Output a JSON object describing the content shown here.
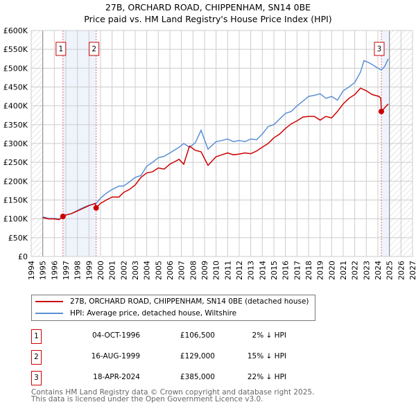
{
  "chart_data": {
    "type": "line",
    "title": "27B, ORCHARD ROAD, CHIPPENHAM, SN14 0BE",
    "subtitle": "Price paid vs. HM Land Registry's House Price Index (HPI)",
    "xlim": [
      1994,
      2027
    ],
    "ylim": [
      0,
      600000
    ],
    "x_ticks": [
      "1994",
      "1995",
      "1996",
      "1997",
      "1998",
      "1999",
      "2000",
      "2001",
      "2002",
      "2003",
      "2004",
      "2005",
      "2006",
      "2007",
      "2008",
      "2009",
      "2010",
      "2011",
      "2012",
      "2013",
      "2014",
      "2015",
      "2016",
      "2017",
      "2018",
      "2019",
      "2020",
      "2021",
      "2022",
      "2023",
      "2024",
      "2025",
      "2026",
      "2027"
    ],
    "y_ticks": [
      {
        "v": 0,
        "label": "£0"
      },
      {
        "v": 50000,
        "label": "£50K"
      },
      {
        "v": 100000,
        "label": "£100K"
      },
      {
        "v": 150000,
        "label": "£150K"
      },
      {
        "v": 200000,
        "label": "£200K"
      },
      {
        "v": 250000,
        "label": "£250K"
      },
      {
        "v": 300000,
        "label": "£300K"
      },
      {
        "v": 350000,
        "label": "£350K"
      },
      {
        "v": 400000,
        "label": "£400K"
      },
      {
        "v": 450000,
        "label": "£450K"
      },
      {
        "v": 500000,
        "label": "£500K"
      },
      {
        "v": 550000,
        "label": "£550K"
      },
      {
        "v": 600000,
        "label": "£600K"
      }
    ],
    "grid": true,
    "series": [
      {
        "name": "27B, ORCHARD ROAD, CHIPPENHAM, SN14 0BE (detached house)",
        "color": "#cc0000",
        "x": [
          1995,
          1995.5,
          1996,
          1996.4,
          1996.75,
          1997,
          1997.5,
          1998,
          1998.5,
          1999,
          1999.55,
          1999.62,
          2000,
          2000.5,
          2001,
          2001.6,
          2002,
          2002.5,
          2003,
          2003.5,
          2004,
          2004.5,
          2005,
          2005.5,
          2006,
          2006.8,
          2007.2,
          2007.7,
          2008.2,
          2008.7,
          2009.3,
          2010,
          2010.5,
          2011,
          2011.5,
          2012,
          2012.5,
          2013,
          2013.5,
          2014,
          2014.5,
          2015,
          2015.5,
          2016,
          2016.5,
          2017,
          2017.5,
          2018,
          2018.5,
          2019,
          2019.5,
          2020,
          2020.5,
          2021,
          2021.5,
          2022,
          2022.5,
          2023,
          2023.5,
          2024.1,
          2024.25,
          2024.3,
          2024.9
        ],
        "y": [
          103000,
          100000,
          100000,
          98000,
          106500,
          110000,
          114000,
          121000,
          128000,
          135000,
          141000,
          129000,
          141000,
          150000,
          158000,
          158000,
          170000,
          178000,
          190000,
          210000,
          222000,
          225000,
          235000,
          232000,
          245000,
          258000,
          245000,
          293000,
          282000,
          278000,
          242000,
          265000,
          270000,
          275000,
          270000,
          272000,
          275000,
          273000,
          280000,
          290000,
          300000,
          315000,
          325000,
          340000,
          352000,
          360000,
          370000,
          372000,
          372000,
          362000,
          372000,
          368000,
          385000,
          405000,
          420000,
          430000,
          447000,
          440000,
          430000,
          425000,
          420000,
          385000,
          405000
        ]
      },
      {
        "name": "HPI: Average price, detached house, Wiltshire",
        "color": "#5b8fd4",
        "x": [
          1995,
          1995.5,
          1996,
          1996.5,
          1997,
          1997.5,
          1998,
          1998.5,
          1999,
          1999.6,
          2000,
          2000.5,
          2001,
          2001.6,
          2002,
          2002.5,
          2003,
          2003.5,
          2004,
          2004.5,
          2005,
          2005.5,
          2006,
          2006.8,
          2007.2,
          2007.7,
          2008.2,
          2008.7,
          2009.3,
          2010,
          2010.5,
          2011,
          2011.5,
          2012,
          2012.5,
          2013,
          2013.5,
          2014,
          2014.5,
          2015,
          2015.5,
          2016,
          2016.5,
          2017,
          2017.5,
          2018,
          2018.5,
          2019,
          2019.5,
          2020,
          2020.5,
          2021,
          2021.5,
          2022,
          2022.5,
          2022.8,
          2023.2,
          2023.6,
          2024,
          2024.3,
          2024.6,
          2024.9
        ],
        "y": [
          105000,
          101000,
          101000,
          100000,
          110000,
          114000,
          122000,
          130000,
          136000,
          140000,
          155000,
          168000,
          178000,
          187000,
          187000,
          198000,
          210000,
          215000,
          240000,
          250000,
          262000,
          266000,
          275000,
          290000,
          300000,
          290000,
          302000,
          335000,
          285000,
          305000,
          308000,
          312000,
          305000,
          308000,
          305000,
          312000,
          310000,
          325000,
          345000,
          350000,
          365000,
          380000,
          385000,
          400000,
          412000,
          425000,
          428000,
          432000,
          420000,
          425000,
          415000,
          440000,
          450000,
          462000,
          490000,
          520000,
          515000,
          508000,
          500000,
          495000,
          505000,
          525000
        ]
      }
    ],
    "sales": [
      {
        "id": "1",
        "x": 1996.75,
        "y": 106500
      },
      {
        "id": "2",
        "x": 1999.62,
        "y": 129000
      },
      {
        "id": "3",
        "x": 2024.3,
        "y": 385000
      }
    ]
  },
  "legend": [
    {
      "label": "27B, ORCHARD ROAD, CHIPPENHAM, SN14 0BE (detached house)",
      "color": "#cc0000"
    },
    {
      "label": "HPI: Average price, detached house, Wiltshire",
      "color": "#5b8fd4"
    }
  ],
  "transactions": [
    {
      "num": "1",
      "date": "04-OCT-1996",
      "price": "£106,500",
      "hpi": "2% ↓ HPI"
    },
    {
      "num": "2",
      "date": "16-AUG-1999",
      "price": "£129,000",
      "hpi": "15% ↓ HPI"
    },
    {
      "num": "3",
      "date": "18-APR-2024",
      "price": "£385,000",
      "hpi": "22% ↓ HPI"
    }
  ],
  "footer": {
    "line1": "Contains HM Land Registry data © Crown copyright and database right 2025.",
    "line2": "This data is licensed under the Open Government Licence v3.0."
  }
}
